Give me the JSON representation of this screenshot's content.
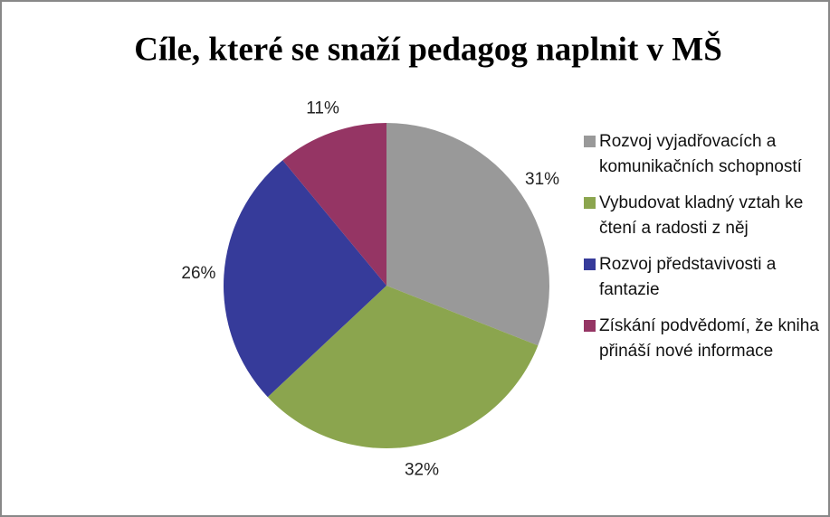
{
  "chart_data": {
    "type": "pie",
    "title": "Cíle, které se snaží pedagog naplnit v MŠ",
    "categories": [
      "Rozvoj vyjadřovacích a komunikačních schopností",
      "Vybudovat kladný vztah ke čtení a radosti z něj",
      "Rozvoj představivosti a fantazie",
      "Získání podvědomí, že kniha přináší nové informace"
    ],
    "values": [
      31,
      32,
      26,
      11
    ],
    "value_labels": [
      "31%",
      "32%",
      "26%",
      "11%"
    ],
    "colors": [
      "#999999",
      "#8ba54e",
      "#363b9a",
      "#953564"
    ],
    "legend": "right"
  }
}
